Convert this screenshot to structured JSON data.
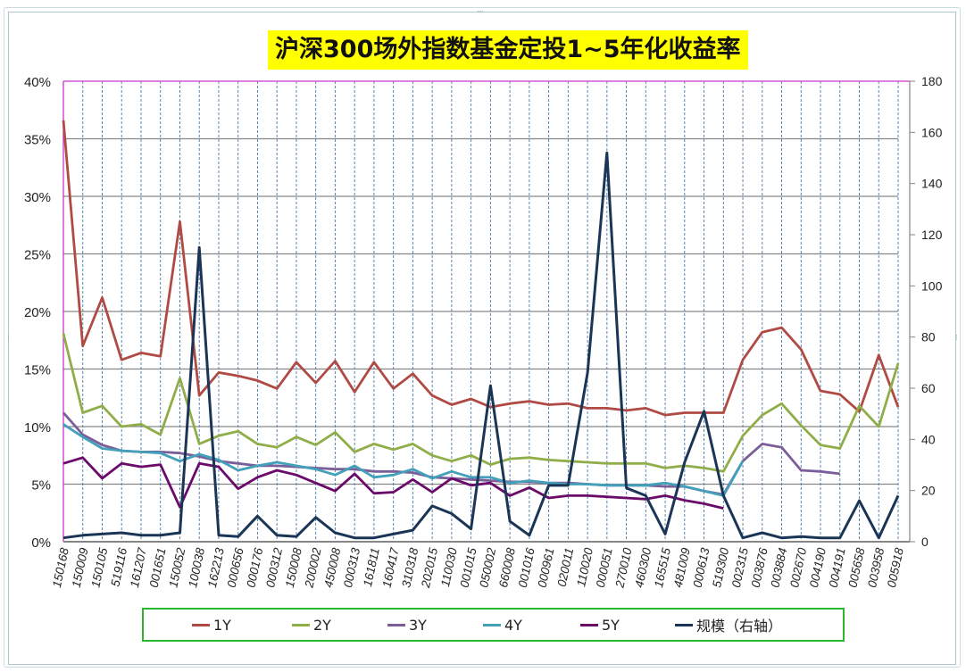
{
  "title": "沪深300场外指数基金定投1~5年化收益率",
  "legend": [
    {
      "label": "1Y",
      "color": "#b04a45"
    },
    {
      "label": "2Y",
      "color": "#8fae4a"
    },
    {
      "label": "3Y",
      "color": "#7b5e99"
    },
    {
      "label": "4Y",
      "color": "#43a0bb"
    },
    {
      "label": "5Y",
      "color": "#6a0a6a"
    },
    {
      "label": "规模（右轴）",
      "color": "#1b3557"
    }
  ],
  "chart_data": {
    "type": "line",
    "title": "沪深300场外指数基金定投1~5年化收益率",
    "xlabel": "",
    "ylabel": "",
    "y_left": {
      "min": 0,
      "max": 40,
      "step": 5,
      "format": "percent",
      "ticks": [
        "0%",
        "5%",
        "10%",
        "15%",
        "20%",
        "25%",
        "30%",
        "35%",
        "40%"
      ]
    },
    "y_right": {
      "min": 0,
      "max": 180,
      "step": 20,
      "ticks": [
        "0",
        "20",
        "40",
        "60",
        "80",
        "100",
        "120",
        "140",
        "160",
        "180"
      ]
    },
    "grid": {
      "horizontal": true,
      "vertical_dashed": true
    },
    "legend_position": "bottom",
    "categories": [
      "150168",
      "150009",
      "150105",
      "519116",
      "161207",
      "001651",
      "150052",
      "100038",
      "162213",
      "000656",
      "000176",
      "000312",
      "150008",
      "200002",
      "450008",
      "000313",
      "161811",
      "160417",
      "310318",
      "202015",
      "110030",
      "001015",
      "050002",
      "660008",
      "001016",
      "000961",
      "020011",
      "110020",
      "000051",
      "270010",
      "460300",
      "165515",
      "481009",
      "000613",
      "519300",
      "002315",
      "003876",
      "003884",
      "002670",
      "004190",
      "004191",
      "005658",
      "003958",
      "005918"
    ],
    "series": [
      {
        "name": "1Y",
        "axis": "left",
        "color": "#b04a45",
        "values": [
          36.6,
          17.0,
          21.2,
          15.8,
          16.4,
          16.1,
          27.8,
          12.7,
          14.7,
          14.4,
          14.0,
          13.3,
          15.6,
          13.8,
          15.7,
          13.0,
          15.6,
          13.3,
          14.6,
          12.7,
          11.9,
          12.4,
          11.7,
          12.0,
          12.2,
          11.9,
          12.0,
          11.6,
          11.6,
          11.4,
          11.6,
          11.0,
          11.2,
          11.2,
          11.2,
          15.8,
          18.2,
          18.6,
          16.7,
          13.1,
          12.8,
          11.3,
          16.2,
          11.7
        ]
      },
      {
        "name": "2Y",
        "axis": "left",
        "color": "#8fae4a",
        "values": [
          18.1,
          11.2,
          11.8,
          10.0,
          10.2,
          9.3,
          14.2,
          8.5,
          9.2,
          9.6,
          8.5,
          8.2,
          9.1,
          8.4,
          9.5,
          7.8,
          8.5,
          8.0,
          8.5,
          7.5,
          7.0,
          7.5,
          6.7,
          7.2,
          7.3,
          7.1,
          7.0,
          6.9,
          6.8,
          6.8,
          6.8,
          6.4,
          6.6,
          6.4,
          6.1,
          9.2,
          11.0,
          12.0,
          10.1,
          8.4,
          8.1,
          11.8,
          10.0,
          15.5
        ]
      },
      {
        "name": "3Y",
        "axis": "left",
        "color": "#7b5e99",
        "values": [
          11.2,
          9.3,
          8.4,
          7.9,
          7.8,
          7.8,
          7.7,
          7.4,
          7.0,
          6.8,
          6.6,
          6.6,
          6.5,
          6.4,
          6.3,
          6.3,
          6.1,
          6.1,
          6.0,
          5.6,
          5.5,
          5.4,
          5.3,
          5.2,
          5.2,
          5.1,
          5.1,
          5.0,
          4.9,
          4.9,
          4.9,
          4.8,
          4.8,
          4.4,
          4.1,
          7.0,
          8.5,
          8.2,
          6.2,
          6.1,
          5.9,
          null,
          null,
          null
        ]
      },
      {
        "name": "4Y",
        "axis": "left",
        "color": "#43a0bb",
        "values": [
          10.2,
          9.1,
          8.1,
          7.9,
          7.8,
          7.7,
          7.0,
          7.6,
          7.1,
          6.2,
          6.6,
          6.9,
          6.6,
          6.3,
          5.8,
          6.6,
          5.6,
          5.8,
          6.3,
          5.5,
          6.1,
          5.6,
          5.6,
          5.1,
          5.3,
          5.1,
          5.0,
          5.0,
          4.9,
          4.9,
          4.9,
          5.1,
          4.8,
          4.4,
          4.0,
          7.0,
          null,
          null,
          null,
          null,
          null,
          null,
          null,
          null
        ]
      },
      {
        "name": "5Y",
        "axis": "left",
        "color": "#6a0a6a",
        "values": [
          6.8,
          7.3,
          5.5,
          6.8,
          6.5,
          6.7,
          3.0,
          6.8,
          6.5,
          4.6,
          5.6,
          6.2,
          5.8,
          5.1,
          4.4,
          5.9,
          4.2,
          4.3,
          5.4,
          4.3,
          5.5,
          4.9,
          5.1,
          4.0,
          4.7,
          3.8,
          4.0,
          4.0,
          3.9,
          3.8,
          3.7,
          4.0,
          3.6,
          3.3,
          2.9,
          null,
          null,
          null,
          null,
          null,
          null,
          null,
          null,
          null
        ]
      },
      {
        "name": "规模（右轴）",
        "axis": "right",
        "color": "#1b3557",
        "values": [
          1.5,
          2.5,
          3,
          3.5,
          2.5,
          2.5,
          3.5,
          115,
          2.5,
          2,
          10,
          2.5,
          2,
          9.5,
          3.5,
          1.5,
          1.5,
          3,
          4.5,
          14,
          11,
          5,
          61,
          8,
          2.5,
          22,
          22,
          66,
          152,
          21,
          18,
          3,
          31,
          51,
          18,
          1.5,
          3.5,
          1.5,
          2,
          1.5,
          1.5,
          16,
          1.5,
          18
        ]
      }
    ]
  }
}
